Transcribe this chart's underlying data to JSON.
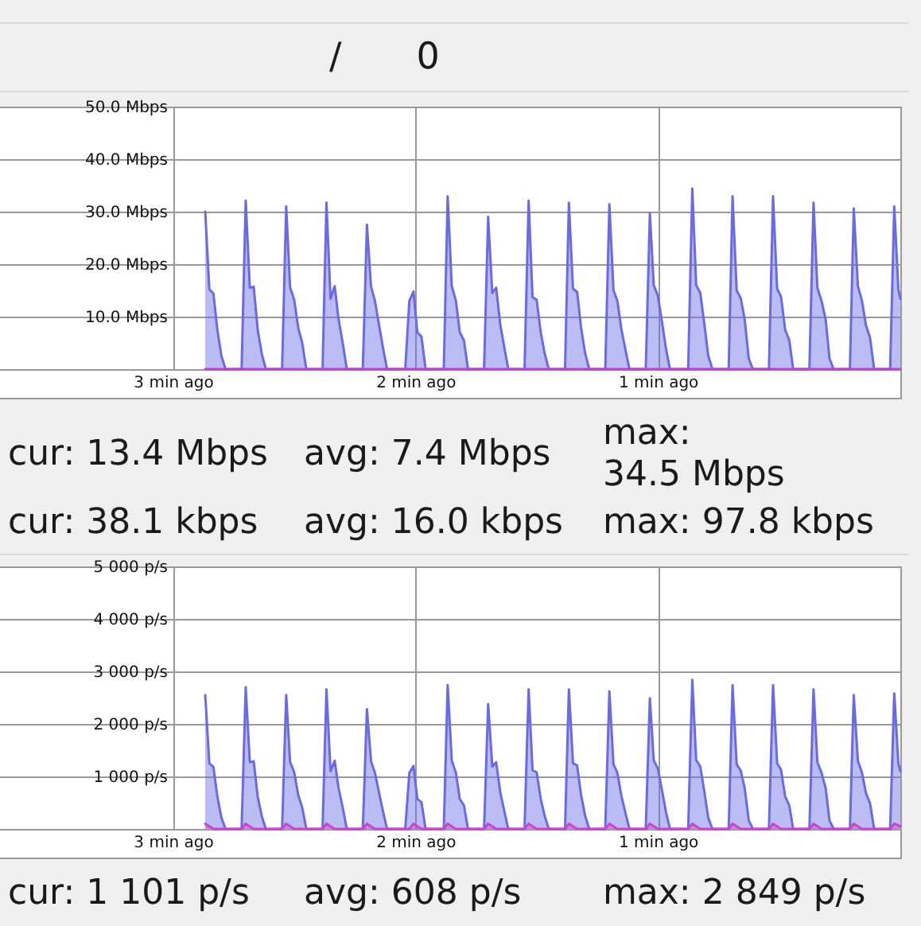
{
  "chart_data": [
    {
      "type": "area",
      "xlim": [
        3.72,
        0
      ],
      "xticks": [
        {
          "value": 3,
          "label": "3 min ago"
        },
        {
          "value": 2,
          "label": "2 min ago"
        },
        {
          "value": 1,
          "label": "1 min ago"
        }
      ],
      "ylim": [
        0,
        50
      ],
      "yticks": [
        {
          "value": 10,
          "label": "10.0 Mbps"
        },
        {
          "value": 20,
          "label": "20.0 Mbps"
        },
        {
          "value": 30,
          "label": "30.0 Mbps"
        },
        {
          "value": 40,
          "label": "40.0 Mbps"
        },
        {
          "value": 50,
          "label": "50.0 Mbps"
        }
      ],
      "grid": true,
      "series": [
        {
          "color": "#6a6ae6",
          "x": [
            2.867,
            2.85,
            2.833,
            2.817,
            2.8,
            2.783,
            2.717,
            2.7,
            2.683,
            2.667,
            2.65,
            2.633,
            2.617,
            2.55,
            2.533,
            2.517,
            2.5,
            2.483,
            2.467,
            2.45,
            2.383,
            2.367,
            2.35,
            2.333,
            2.317,
            2.3,
            2.283,
            2.217,
            2.2,
            2.183,
            2.167,
            2.15,
            2.133,
            2.117,
            2.042,
            2.025,
            2.008,
            1.992,
            1.975,
            1.958,
            1.883,
            1.867,
            1.85,
            1.833,
            1.817,
            1.8,
            1.783,
            1.717,
            1.7,
            1.683,
            1.667,
            1.65,
            1.633,
            1.617,
            1.55,
            1.533,
            1.517,
            1.5,
            1.483,
            1.467,
            1.45,
            1.383,
            1.367,
            1.35,
            1.333,
            1.317,
            1.3,
            1.283,
            1.217,
            1.2,
            1.183,
            1.167,
            1.15,
            1.133,
            1.117,
            1.05,
            1.033,
            1.017,
            1.0,
            0.983,
            0.967,
            0.95,
            0.875,
            0.858,
            0.842,
            0.825,
            0.808,
            0.792,
            0.775,
            0.708,
            0.692,
            0.675,
            0.658,
            0.642,
            0.625,
            0.608,
            0.542,
            0.525,
            0.508,
            0.492,
            0.475,
            0.458,
            0.442,
            0.375,
            0.358,
            0.342,
            0.325,
            0.308,
            0.292,
            0.275,
            0.208,
            0.192,
            0.175,
            0.158,
            0.142,
            0.125,
            0.108,
            0.042,
            0.025,
            0.008,
            0
          ],
          "values": [
            30.0,
            15.2,
            14.4,
            7.5,
            2.5,
            0,
            0,
            32.1,
            15.5,
            15.7,
            7.3,
            2.8,
            0,
            0,
            31.0,
            15.6,
            13.2,
            7.8,
            5.0,
            0,
            0,
            31.7,
            13.4,
            15.8,
            9.5,
            5.0,
            0,
            0,
            27.5,
            15.7,
            13.0,
            8.4,
            3.9,
            0,
            0,
            13.0,
            14.8,
            7.0,
            6.2,
            0,
            0,
            32.9,
            15.8,
            13.0,
            7.0,
            5.5,
            0,
            0,
            29.0,
            14.5,
            15.5,
            8.5,
            4.0,
            0,
            0,
            32.1,
            13.7,
            13.2,
            7.0,
            3.0,
            0,
            0,
            31.7,
            15.3,
            14.7,
            8.0,
            3.0,
            0,
            0,
            31.4,
            15.0,
            13.0,
            7.5,
            3.5,
            0,
            0,
            29.7,
            16.0,
            14.0,
            9.0,
            4.0,
            0,
            0,
            34.4,
            16.0,
            14.5,
            8.5,
            2.5,
            0,
            0,
            32.9,
            15.0,
            13.5,
            9.5,
            2.0,
            0,
            0,
            32.9,
            15.3,
            13.8,
            7.5,
            5.5,
            0,
            0,
            31.7,
            15.5,
            13.0,
            9.5,
            2.0,
            0,
            0,
            30.6,
            15.8,
            13.0,
            8.4,
            6.0,
            0,
            0,
            31.0,
            15.2,
            13.4
          ]
        },
        {
          "type": "line",
          "color": "#c040d0",
          "x": [
            2.867,
            0
          ],
          "values": [
            0,
            0
          ]
        }
      ],
      "annotations": [
        "/",
        "0",
        "cur: 13.4 Mbps",
        "avg: 7.4 Mbps",
        "max: 34.5 Mbps",
        "cur: 38.1 kbps",
        "avg: 16.0 kbps",
        "max: 97.8 kbps"
      ]
    },
    {
      "type": "area",
      "xlim": [
        3.72,
        0
      ],
      "xticks": [
        {
          "value": 3,
          "label": "3 min ago"
        },
        {
          "value": 2,
          "label": "2 min ago"
        },
        {
          "value": 1,
          "label": "1 min ago"
        }
      ],
      "ylim": [
        0,
        5000
      ],
      "yticks": [
        {
          "value": 1000,
          "label": "1 000 p/s"
        },
        {
          "value": 2000,
          "label": "2 000 p/s"
        },
        {
          "value": 3000,
          "label": "3 000 p/s"
        },
        {
          "value": 4000,
          "label": "4 000 p/s"
        },
        {
          "value": 5000,
          "label": "5 000 p/s"
        }
      ],
      "grid": true,
      "series": [
        {
          "color": "#6a6ae6",
          "x": [
            2.867,
            2.85,
            2.833,
            2.817,
            2.8,
            2.783,
            2.717,
            2.7,
            2.683,
            2.667,
            2.65,
            2.633,
            2.617,
            2.55,
            2.533,
            2.517,
            2.5,
            2.483,
            2.467,
            2.45,
            2.383,
            2.367,
            2.35,
            2.333,
            2.317,
            2.3,
            2.283,
            2.217,
            2.2,
            2.183,
            2.167,
            2.15,
            2.133,
            2.117,
            2.042,
            2.025,
            2.008,
            1.992,
            1.975,
            1.958,
            1.883,
            1.867,
            1.85,
            1.833,
            1.817,
            1.8,
            1.783,
            1.717,
            1.7,
            1.683,
            1.667,
            1.65,
            1.633,
            1.617,
            1.55,
            1.533,
            1.517,
            1.5,
            1.483,
            1.467,
            1.45,
            1.383,
            1.367,
            1.35,
            1.333,
            1.317,
            1.3,
            1.283,
            1.217,
            1.2,
            1.183,
            1.167,
            1.15,
            1.133,
            1.117,
            1.05,
            1.033,
            1.017,
            1.0,
            0.983,
            0.967,
            0.95,
            0.875,
            0.858,
            0.842,
            0.825,
            0.808,
            0.792,
            0.775,
            0.708,
            0.692,
            0.675,
            0.658,
            0.642,
            0.625,
            0.608,
            0.542,
            0.525,
            0.508,
            0.492,
            0.475,
            0.458,
            0.442,
            0.375,
            0.358,
            0.342,
            0.325,
            0.308,
            0.292,
            0.275,
            0.208,
            0.192,
            0.175,
            0.158,
            0.142,
            0.125,
            0.108,
            0.042,
            0.025,
            0.008,
            0
          ],
          "values": [
            2550,
            1250,
            1180,
            620,
            210,
            0,
            0,
            2700,
            1270,
            1290,
            600,
            230,
            0,
            0,
            2550,
            1280,
            1080,
            640,
            410,
            0,
            0,
            2660,
            1100,
            1300,
            780,
            410,
            0,
            0,
            2280,
            1290,
            1070,
            690,
            320,
            0,
            0,
            1070,
            1200,
            570,
            510,
            0,
            0,
            2740,
            1300,
            1070,
            570,
            450,
            0,
            0,
            2380,
            1190,
            1270,
            700,
            330,
            0,
            0,
            2660,
            1120,
            1080,
            570,
            250,
            0,
            0,
            2660,
            1250,
            1210,
            660,
            250,
            0,
            0,
            2620,
            1230,
            1070,
            620,
            290,
            0,
            0,
            2490,
            1310,
            1150,
            740,
            330,
            0,
            0,
            2840,
            1310,
            1190,
            700,
            210,
            0,
            0,
            2740,
            1230,
            1110,
            780,
            160,
            0,
            0,
            2740,
            1250,
            1130,
            620,
            450,
            0,
            0,
            2660,
            1270,
            1070,
            780,
            160,
            0,
            0,
            2550,
            1300,
            1070,
            690,
            490,
            0,
            0,
            2580,
            1250,
            1100
          ]
        },
        {
          "color": "#cc44cc",
          "x": [
            2.867,
            2.833,
            2.717,
            2.7,
            2.667,
            2.55,
            2.533,
            2.5,
            2.383,
            2.367,
            2.333,
            2.217,
            2.2,
            2.167,
            2.025,
            2.008,
            1.975,
            1.883,
            1.867,
            1.833,
            1.717,
            1.7,
            1.667,
            1.55,
            1.533,
            1.5,
            1.383,
            1.367,
            1.333,
            1.217,
            1.2,
            1.167,
            1.05,
            1.033,
            1.0,
            0.875,
            0.858,
            0.825,
            0.708,
            0.692,
            0.658,
            0.542,
            0.525,
            0.492,
            0.375,
            0.358,
            0.325,
            0.208,
            0.192,
            0.158,
            0.042,
            0.025,
            0
          ],
          "values": [
            100,
            0,
            0,
            100,
            0,
            0,
            100,
            0,
            0,
            100,
            0,
            0,
            100,
            0,
            0,
            100,
            0,
            0,
            100,
            0,
            0,
            100,
            0,
            0,
            100,
            0,
            0,
            100,
            0,
            0,
            100,
            0,
            0,
            100,
            0,
            0,
            100,
            0,
            0,
            100,
            0,
            0,
            100,
            0,
            0,
            100,
            0,
            0,
            100,
            0,
            0,
            100,
            50
          ]
        }
      ],
      "annotations": [
        "cur: 1 101 p/s",
        "avg: 608 p/s",
        "max: 2 849 p/s"
      ]
    }
  ]
}
